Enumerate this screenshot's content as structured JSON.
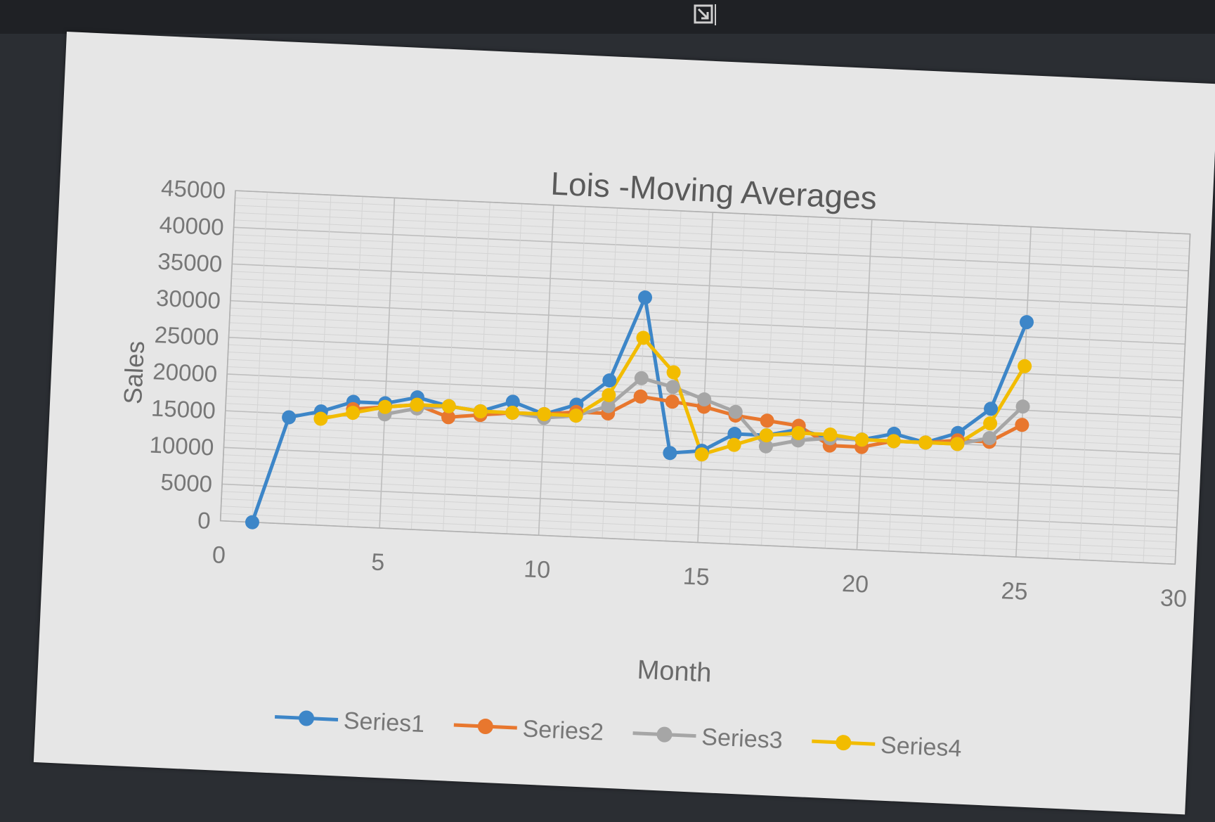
{
  "window": {
    "expand_icon": "expand-corner-icon"
  },
  "chart_data": {
    "type": "line",
    "title": "Lois -Moving Averages",
    "xlabel": "Month",
    "ylabel": "Sales",
    "xlim": [
      0,
      30
    ],
    "ylim": [
      0,
      45000
    ],
    "x_ticks": [
      "0",
      "5",
      "10",
      "15",
      "20",
      "25",
      "30"
    ],
    "y_ticks": [
      "0",
      "5000",
      "10000",
      "15000",
      "20000",
      "25000",
      "30000",
      "35000",
      "40000",
      "45000"
    ],
    "grid": true,
    "legend_position": "bottom",
    "series": [
      {
        "name": "Series1",
        "color": "#3d86c8",
        "x": [
          1,
          2,
          3,
          4,
          5,
          6,
          7,
          8,
          9,
          10,
          11,
          12,
          13,
          14,
          15,
          16,
          17,
          18,
          19,
          20,
          21,
          22,
          23,
          24,
          25,
          26
        ],
        "y": [
          0,
          14500,
          15500,
          17000,
          17000,
          18000,
          17000,
          16500,
          18000,
          16500,
          18000,
          21500,
          33000,
          12000,
          12500,
          15000,
          15000,
          16000,
          15000,
          15000,
          16000,
          15000,
          16500,
          20000,
          32000,
          null
        ]
      },
      {
        "name": "Series2",
        "color": "#e8772e",
        "x": [
          1,
          2,
          3,
          4,
          5,
          6,
          7,
          8,
          9,
          10,
          11,
          12,
          13,
          14,
          15,
          16,
          17,
          18,
          19,
          20,
          21,
          22,
          23,
          24,
          25,
          26
        ],
        "y": [
          null,
          null,
          null,
          16000,
          16500,
          17000,
          15500,
          16000,
          16500,
          16500,
          17000,
          17000,
          19500,
          19000,
          18500,
          17500,
          17000,
          16500,
          14000,
          14000,
          15000,
          15000,
          15500,
          15500,
          18000,
          null
        ]
      },
      {
        "name": "Series3",
        "color": "#a6a6a6",
        "x": [
          1,
          2,
          3,
          4,
          5,
          6,
          7,
          8,
          9,
          10,
          11,
          12,
          13,
          14,
          15,
          16,
          17,
          18,
          19,
          20,
          21,
          22,
          23,
          24,
          25,
          26
        ],
        "y": [
          null,
          null,
          null,
          null,
          15500,
          16500,
          17000,
          16500,
          16500,
          16000,
          16500,
          18000,
          22000,
          21000,
          19500,
          18000,
          13500,
          14500,
          15000,
          15000,
          15000,
          15000,
          15000,
          16000,
          20500,
          null
        ]
      },
      {
        "name": "Series4",
        "color": "#f2bc00",
        "x": [
          1,
          2,
          3,
          4,
          5,
          6,
          7,
          8,
          9,
          10,
          11,
          12,
          13,
          14,
          15,
          16,
          17,
          18,
          19,
          20,
          21,
          22,
          23,
          24,
          25,
          26
        ],
        "y": [
          null,
          null,
          14500,
          15500,
          16500,
          17000,
          17000,
          16500,
          16500,
          16500,
          16500,
          19500,
          27500,
          23000,
          12000,
          13500,
          15000,
          15500,
          15500,
          15000,
          15000,
          15000,
          15000,
          18000,
          26000,
          null
        ]
      }
    ]
  }
}
